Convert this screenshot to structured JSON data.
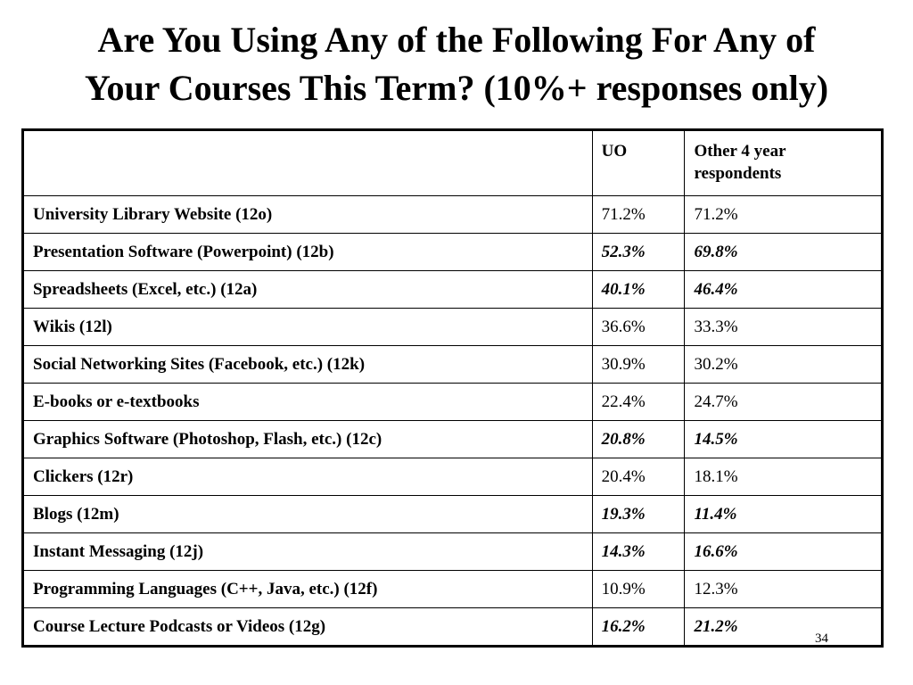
{
  "slide": {
    "title_line1": "Are You Using Any of the Following For Any of",
    "title_line2": "Your Courses This Term? (10%+ responses only)",
    "page_number": "34"
  },
  "table": {
    "headers": [
      "",
      "UO",
      "Other 4 year respondents"
    ],
    "rows": [
      {
        "label": "University Library Website (12o)",
        "uo": "71.2%",
        "other": "71.2%",
        "emphasized": false
      },
      {
        "label": "Presentation Software (Powerpoint) (12b)",
        "uo": "52.3%",
        "other": "69.8%",
        "emphasized": true
      },
      {
        "label": "Spreadsheets (Excel, etc.) (12a)",
        "uo": "40.1%",
        "other": "46.4%",
        "emphasized": true
      },
      {
        "label": "Wikis (12l)",
        "uo": "36.6%",
        "other": "33.3%",
        "emphasized": false
      },
      {
        "label": "Social Networking Sites (Facebook, etc.) (12k)",
        "uo": "30.9%",
        "other": "30.2%",
        "emphasized": false
      },
      {
        "label": "E-books or e-textbooks",
        "uo": "22.4%",
        "other": "24.7%",
        "emphasized": false
      },
      {
        "label": "Graphics Software (Photoshop, Flash, etc.) (12c)",
        "uo": "20.8%",
        "other": "14.5%",
        "emphasized": true
      },
      {
        "label": "Clickers (12r)",
        "uo": "20.4%",
        "other": "18.1%",
        "emphasized": false
      },
      {
        "label": "Blogs (12m)",
        "uo": "19.3%",
        "other": "11.4%",
        "emphasized": true
      },
      {
        "label": "Instant Messaging (12j)",
        "uo": "14.3%",
        "other": "16.6%",
        "emphasized": true
      },
      {
        "label": "Programming Languages (C++, Java, etc.) (12f)",
        "uo": "10.9%",
        "other": "12.3%",
        "emphasized": false
      },
      {
        "label": "Course Lecture Podcasts or Videos (12g)",
        "uo": "16.2%",
        "other": "21.2%",
        "emphasized": true
      }
    ]
  }
}
